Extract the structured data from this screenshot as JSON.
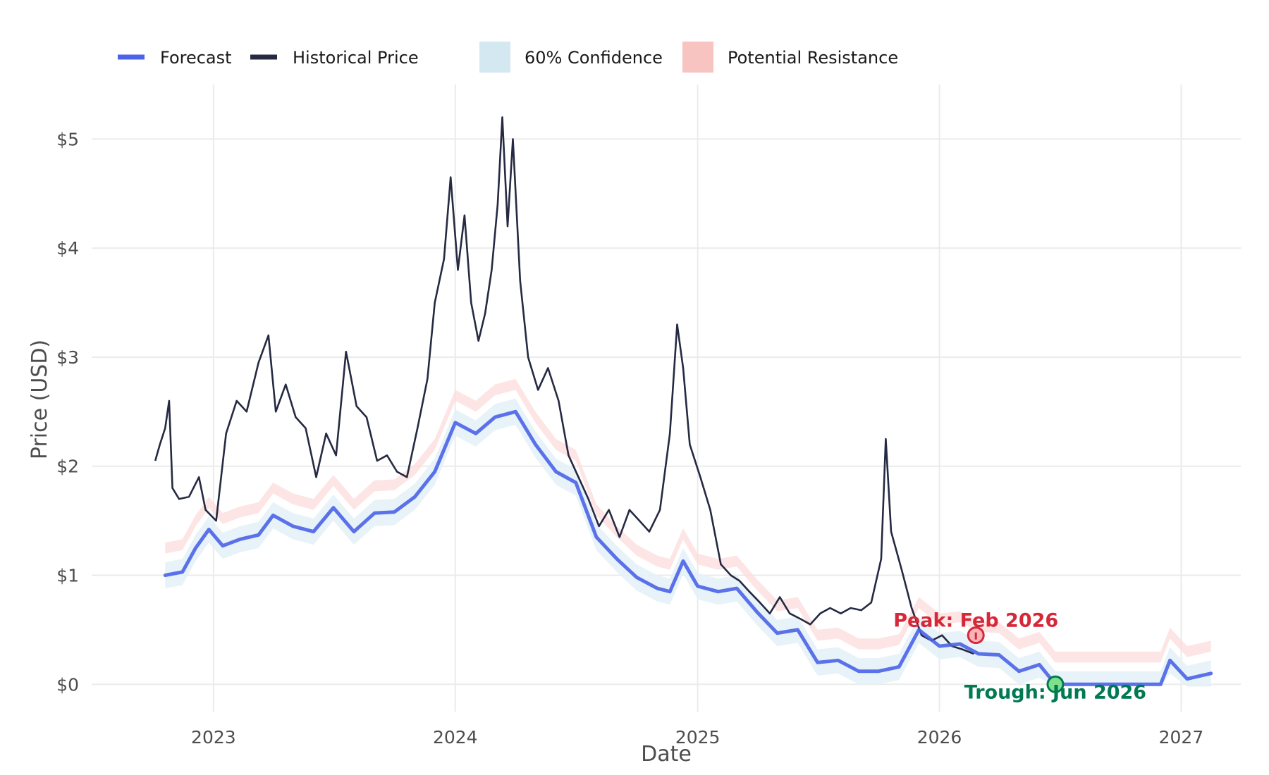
{
  "chart_data": {
    "type": "line",
    "xlabel": "Date",
    "ylabel": "Price (USD)",
    "xlim": [
      "2022-07-01",
      "2027-04-01"
    ],
    "ylim": [
      -0.25,
      5.5
    ],
    "x_ticks": [
      "2023",
      "2024",
      "2025",
      "2026",
      "2027"
    ],
    "y_ticks": [
      0,
      1,
      2,
      3,
      4,
      5
    ],
    "y_tick_labels": [
      "$0",
      "$1",
      "$2",
      "$3",
      "$4",
      "$5"
    ],
    "grid": true,
    "legend": {
      "placement": "top",
      "entries": [
        {
          "label": "Forecast",
          "kind": "line",
          "color": "#4a63e8"
        },
        {
          "label": "Historical Price",
          "kind": "line",
          "color": "#252a42"
        },
        {
          "label": "60% Confidence",
          "kind": "band",
          "color": "#d4e8f2"
        },
        {
          "label": "Potential Resistance",
          "kind": "band",
          "color": "#f7c4c2"
        }
      ]
    },
    "series": [
      {
        "name": "Historical Price",
        "color": "#252a42",
        "points": [
          [
            "2022-10-05",
            2.05
          ],
          [
            "2022-10-12",
            2.2
          ],
          [
            "2022-10-20",
            2.35
          ],
          [
            "2022-10-26",
            2.6
          ],
          [
            "2022-10-31",
            1.8
          ],
          [
            "2022-11-10",
            1.7
          ],
          [
            "2022-11-25",
            1.72
          ],
          [
            "2022-12-10",
            1.9
          ],
          [
            "2022-12-20",
            1.6
          ],
          [
            "2023-01-05",
            1.5
          ],
          [
            "2023-01-20",
            2.3
          ],
          [
            "2023-02-05",
            2.6
          ],
          [
            "2023-02-20",
            2.5
          ],
          [
            "2023-03-10",
            2.95
          ],
          [
            "2023-03-25",
            3.2
          ],
          [
            "2023-04-05",
            2.5
          ],
          [
            "2023-04-20",
            2.75
          ],
          [
            "2023-05-05",
            2.45
          ],
          [
            "2023-05-20",
            2.35
          ],
          [
            "2023-06-05",
            1.9
          ],
          [
            "2023-06-20",
            2.3
          ],
          [
            "2023-07-05",
            2.1
          ],
          [
            "2023-07-20",
            3.05
          ],
          [
            "2023-08-05",
            2.55
          ],
          [
            "2023-08-20",
            2.45
          ],
          [
            "2023-09-05",
            2.05
          ],
          [
            "2023-09-20",
            2.1
          ],
          [
            "2023-10-05",
            1.95
          ],
          [
            "2023-10-20",
            1.9
          ],
          [
            "2023-11-05",
            2.35
          ],
          [
            "2023-11-20",
            2.8
          ],
          [
            "2023-12-01",
            3.5
          ],
          [
            "2023-12-15",
            3.9
          ],
          [
            "2023-12-25",
            4.65
          ],
          [
            "2024-01-05",
            3.8
          ],
          [
            "2024-01-15",
            4.3
          ],
          [
            "2024-01-25",
            3.5
          ],
          [
            "2024-02-05",
            3.15
          ],
          [
            "2024-02-15",
            3.4
          ],
          [
            "2024-02-25",
            3.8
          ],
          [
            "2024-03-05",
            4.4
          ],
          [
            "2024-03-12",
            5.2
          ],
          [
            "2024-03-20",
            4.2
          ],
          [
            "2024-03-28",
            5.0
          ],
          [
            "2024-04-08",
            3.7
          ],
          [
            "2024-04-20",
            3.0
          ],
          [
            "2024-05-05",
            2.7
          ],
          [
            "2024-05-20",
            2.9
          ],
          [
            "2024-06-05",
            2.6
          ],
          [
            "2024-06-20",
            2.1
          ],
          [
            "2024-07-05",
            1.9
          ],
          [
            "2024-07-20",
            1.7
          ],
          [
            "2024-08-05",
            1.45
          ],
          [
            "2024-08-20",
            1.6
          ],
          [
            "2024-09-05",
            1.35
          ],
          [
            "2024-09-20",
            1.6
          ],
          [
            "2024-10-05",
            1.5
          ],
          [
            "2024-10-20",
            1.4
          ],
          [
            "2024-11-05",
            1.6
          ],
          [
            "2024-11-20",
            2.3
          ],
          [
            "2024-12-01",
            3.3
          ],
          [
            "2024-12-10",
            2.9
          ],
          [
            "2024-12-20",
            2.2
          ],
          [
            "2025-01-05",
            1.9
          ],
          [
            "2025-01-20",
            1.6
          ],
          [
            "2025-02-05",
            1.1
          ],
          [
            "2025-02-20",
            1.0
          ],
          [
            "2025-03-05",
            0.95
          ],
          [
            "2025-03-20",
            0.85
          ],
          [
            "2025-04-05",
            0.75
          ],
          [
            "2025-04-20",
            0.65
          ],
          [
            "2025-05-05",
            0.8
          ],
          [
            "2025-05-20",
            0.65
          ],
          [
            "2025-06-05",
            0.6
          ],
          [
            "2025-06-20",
            0.55
          ],
          [
            "2025-07-05",
            0.65
          ],
          [
            "2025-07-20",
            0.7
          ],
          [
            "2025-08-05",
            0.65
          ],
          [
            "2025-08-20",
            0.7
          ],
          [
            "2025-09-05",
            0.68
          ],
          [
            "2025-09-20",
            0.75
          ],
          [
            "2025-10-05",
            1.15
          ],
          [
            "2025-10-12",
            2.25
          ],
          [
            "2025-10-20",
            1.4
          ],
          [
            "2025-11-05",
            1.05
          ],
          [
            "2025-11-20",
            0.7
          ],
          [
            "2025-12-05",
            0.45
          ],
          [
            "2025-12-20",
            0.4
          ],
          [
            "2026-01-05",
            0.45
          ],
          [
            "2026-01-20",
            0.35
          ],
          [
            "2026-02-05",
            0.32
          ],
          [
            "2026-02-22",
            0.28
          ]
        ]
      },
      {
        "name": "Forecast",
        "color": "#4a63e8",
        "points": [
          [
            "2022-10-20",
            1.0
          ],
          [
            "2022-11-15",
            1.03
          ],
          [
            "2022-12-05",
            1.25
          ],
          [
            "2022-12-25",
            1.42
          ],
          [
            "2023-01-15",
            1.27
          ],
          [
            "2023-02-10",
            1.33
          ],
          [
            "2023-03-10",
            1.37
          ],
          [
            "2023-04-01",
            1.55
          ],
          [
            "2023-05-01",
            1.45
          ],
          [
            "2023-06-01",
            1.4
          ],
          [
            "2023-07-01",
            1.62
          ],
          [
            "2023-08-01",
            1.4
          ],
          [
            "2023-09-01",
            1.57
          ],
          [
            "2023-10-01",
            1.58
          ],
          [
            "2023-11-01",
            1.72
          ],
          [
            "2023-12-01",
            1.95
          ],
          [
            "2024-01-01",
            2.4
          ],
          [
            "2024-02-01",
            2.3
          ],
          [
            "2024-03-01",
            2.45
          ],
          [
            "2024-04-01",
            2.5
          ],
          [
            "2024-05-01",
            2.2
          ],
          [
            "2024-06-01",
            1.95
          ],
          [
            "2024-07-01",
            1.85
          ],
          [
            "2024-08-01",
            1.35
          ],
          [
            "2024-09-01",
            1.15
          ],
          [
            "2024-10-01",
            0.98
          ],
          [
            "2024-11-01",
            0.88
          ],
          [
            "2024-11-20",
            0.85
          ],
          [
            "2024-12-10",
            1.13
          ],
          [
            "2025-01-01",
            0.9
          ],
          [
            "2025-02-01",
            0.85
          ],
          [
            "2025-03-01",
            0.88
          ],
          [
            "2025-04-01",
            0.66
          ],
          [
            "2025-05-01",
            0.47
          ],
          [
            "2025-06-01",
            0.5
          ],
          [
            "2025-07-01",
            0.2
          ],
          [
            "2025-08-01",
            0.22
          ],
          [
            "2025-09-01",
            0.12
          ],
          [
            "2025-10-01",
            0.12
          ],
          [
            "2025-11-01",
            0.16
          ],
          [
            "2025-12-01",
            0.5
          ],
          [
            "2026-01-01",
            0.35
          ],
          [
            "2026-02-01",
            0.37
          ],
          [
            "2026-03-01",
            0.28
          ],
          [
            "2026-04-01",
            0.27
          ],
          [
            "2026-05-01",
            0.12
          ],
          [
            "2026-06-01",
            0.18
          ],
          [
            "2026-06-25",
            0.0
          ],
          [
            "2026-12-01",
            0.0
          ],
          [
            "2026-12-15",
            0.22
          ],
          [
            "2027-01-10",
            0.05
          ],
          [
            "2027-02-15",
            0.1
          ]
        ]
      }
    ],
    "annotations": [
      {
        "label": "Peak: Feb 2026",
        "date": "2026-02-25",
        "value": 0.45,
        "color": "#d62839"
      },
      {
        "label": "Trough: Jun 2026",
        "date": "2026-06-25",
        "value": 0.0,
        "color": "#007a52"
      }
    ]
  }
}
